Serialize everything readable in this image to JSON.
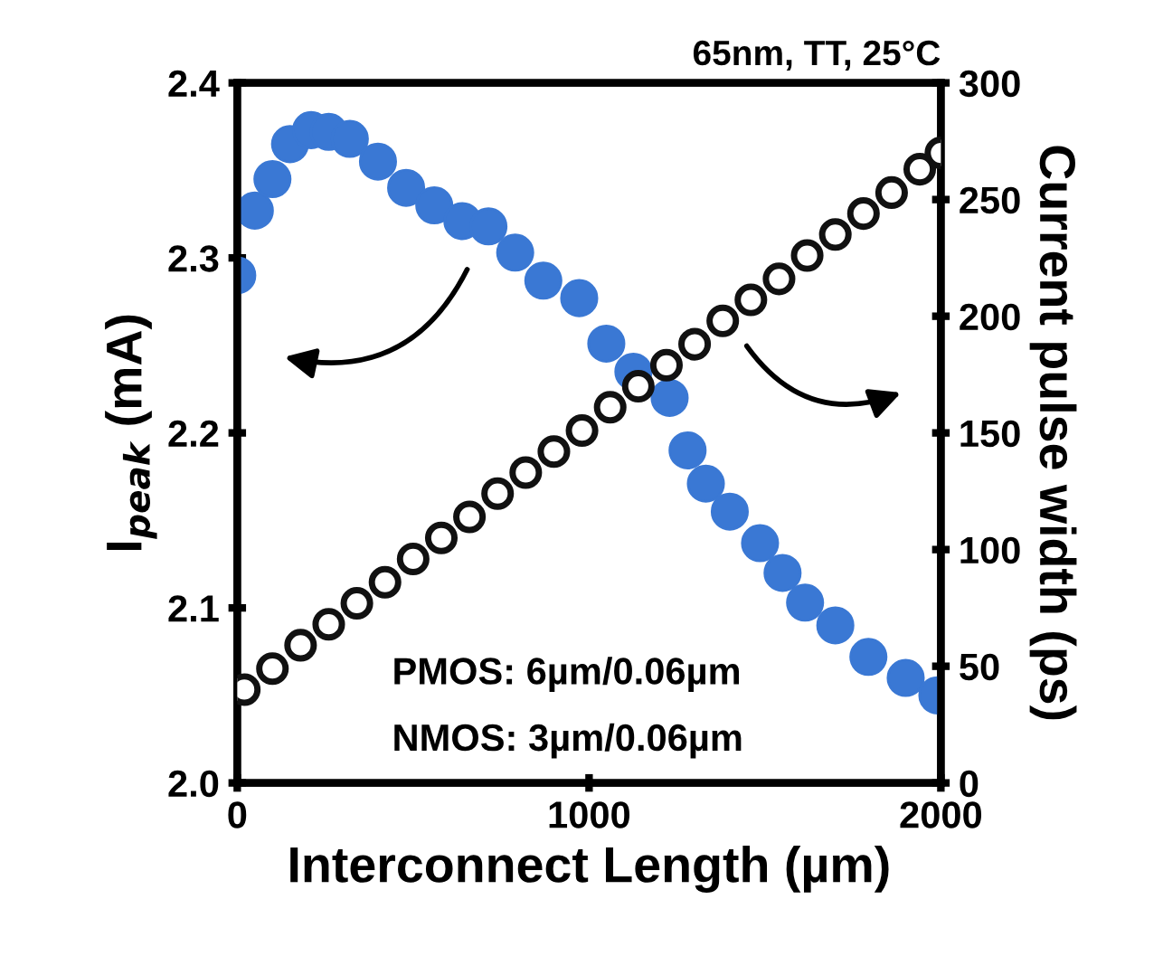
{
  "chart_data": {
    "type": "scatter",
    "xlabel": "Interconnect Length (µm)",
    "ylabel": "I$_{peak}$ (mA)",
    "y2label": "Current pulse width (ps)",
    "annotations": [
      "65nm, TT, 25°C",
      "PMOS: 6µm/0.06µm",
      "NMOS: 3µm/0.06µm"
    ],
    "xlim": [
      0,
      2000
    ],
    "xticks": [
      0,
      1000,
      2000
    ],
    "ylim": [
      2.0,
      2.4
    ],
    "yticks": [
      {
        "value": 2.0,
        "label": "2.0"
      },
      2.1,
      2.2,
      2.3,
      2.4
    ],
    "y2lim": [
      0,
      300
    ],
    "y2ticks": [
      0,
      50,
      100,
      150,
      200,
      250,
      300
    ],
    "grid": false,
    "series": [
      {
        "color": "#3a78d4",
        "marker": "circle",
        "x": [
          0,
          50,
          100,
          150,
          210,
          260,
          320,
          400,
          480,
          560,
          640,
          714,
          790,
          870,
          972,
          1049,
          1126,
          1229,
          1280,
          1332,
          1400,
          1486,
          1550,
          1614,
          1700,
          1794,
          1900,
          1990
        ],
        "values": [
          2.29,
          2.327,
          2.345,
          2.365,
          2.373,
          2.372,
          2.368,
          2.355,
          2.34,
          2.33,
          2.321,
          2.318,
          2.303,
          2.287,
          2.277,
          2.251,
          2.235,
          2.22,
          2.19,
          2.171,
          2.155,
          2.137,
          2.12,
          2.103,
          2.09,
          2.072,
          2.06,
          2.05
        ]
      },
      {
        "color": "#111111",
        "marker": "circle",
        "axis": "y2",
        "x": [
          20,
          100,
          180,
          260,
          340,
          420,
          500,
          580,
          660,
          740,
          820,
          900,
          980,
          1060,
          1140,
          1220,
          1300,
          1380,
          1460,
          1540,
          1620,
          1700,
          1780,
          1860,
          1940,
          2000
        ],
        "values": [
          40,
          49,
          59,
          68,
          77,
          86,
          96,
          105,
          114,
          124,
          133,
          142,
          151,
          161,
          170,
          179,
          188,
          198,
          207,
          216,
          226,
          235,
          244,
          253,
          263,
          270
        ]
      }
    ]
  }
}
